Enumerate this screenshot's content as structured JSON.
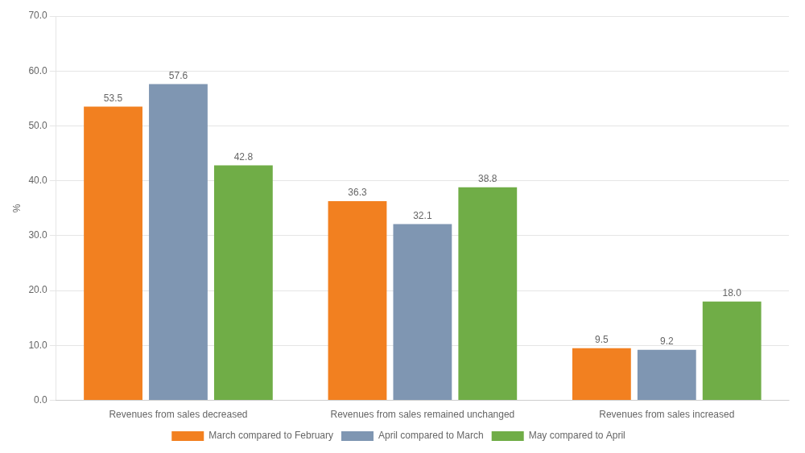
{
  "chart_data": {
    "type": "bar",
    "categories": [
      "Revenues from sales decreased",
      "Revenues from sales remained unchanged",
      "Revenues from sales increased"
    ],
    "series": [
      {
        "name": "March compared to February",
        "color": "#F28020",
        "values": [
          53.5,
          36.3,
          9.5
        ],
        "value_labels": [
          "53.5",
          "36.3",
          "9.5"
        ]
      },
      {
        "name": "April compared to March",
        "color": "#7F96B2",
        "values": [
          57.6,
          32.1,
          9.2
        ],
        "value_labels": [
          "57.6",
          "32.1",
          "9.2"
        ]
      },
      {
        "name": "May compared to April",
        "color": "#70AD47",
        "values": [
          42.8,
          38.8,
          18.0
        ],
        "value_labels": [
          "42.8",
          "38.8",
          "18.0"
        ]
      }
    ],
    "y_label": "%",
    "ylim": [
      0,
      70
    ],
    "yticks": [
      {
        "value": 0,
        "label": "0.0"
      },
      {
        "value": 10,
        "label": "10.0"
      },
      {
        "value": 20,
        "label": "20.0"
      },
      {
        "value": 30,
        "label": "30.0"
      },
      {
        "value": 40,
        "label": "40.0"
      },
      {
        "value": 50,
        "label": "50.0"
      },
      {
        "value": 60,
        "label": "60.0"
      },
      {
        "value": 70,
        "label": "70.0"
      }
    ],
    "grid": true,
    "legend": "bottom",
    "data_labels": true
  }
}
